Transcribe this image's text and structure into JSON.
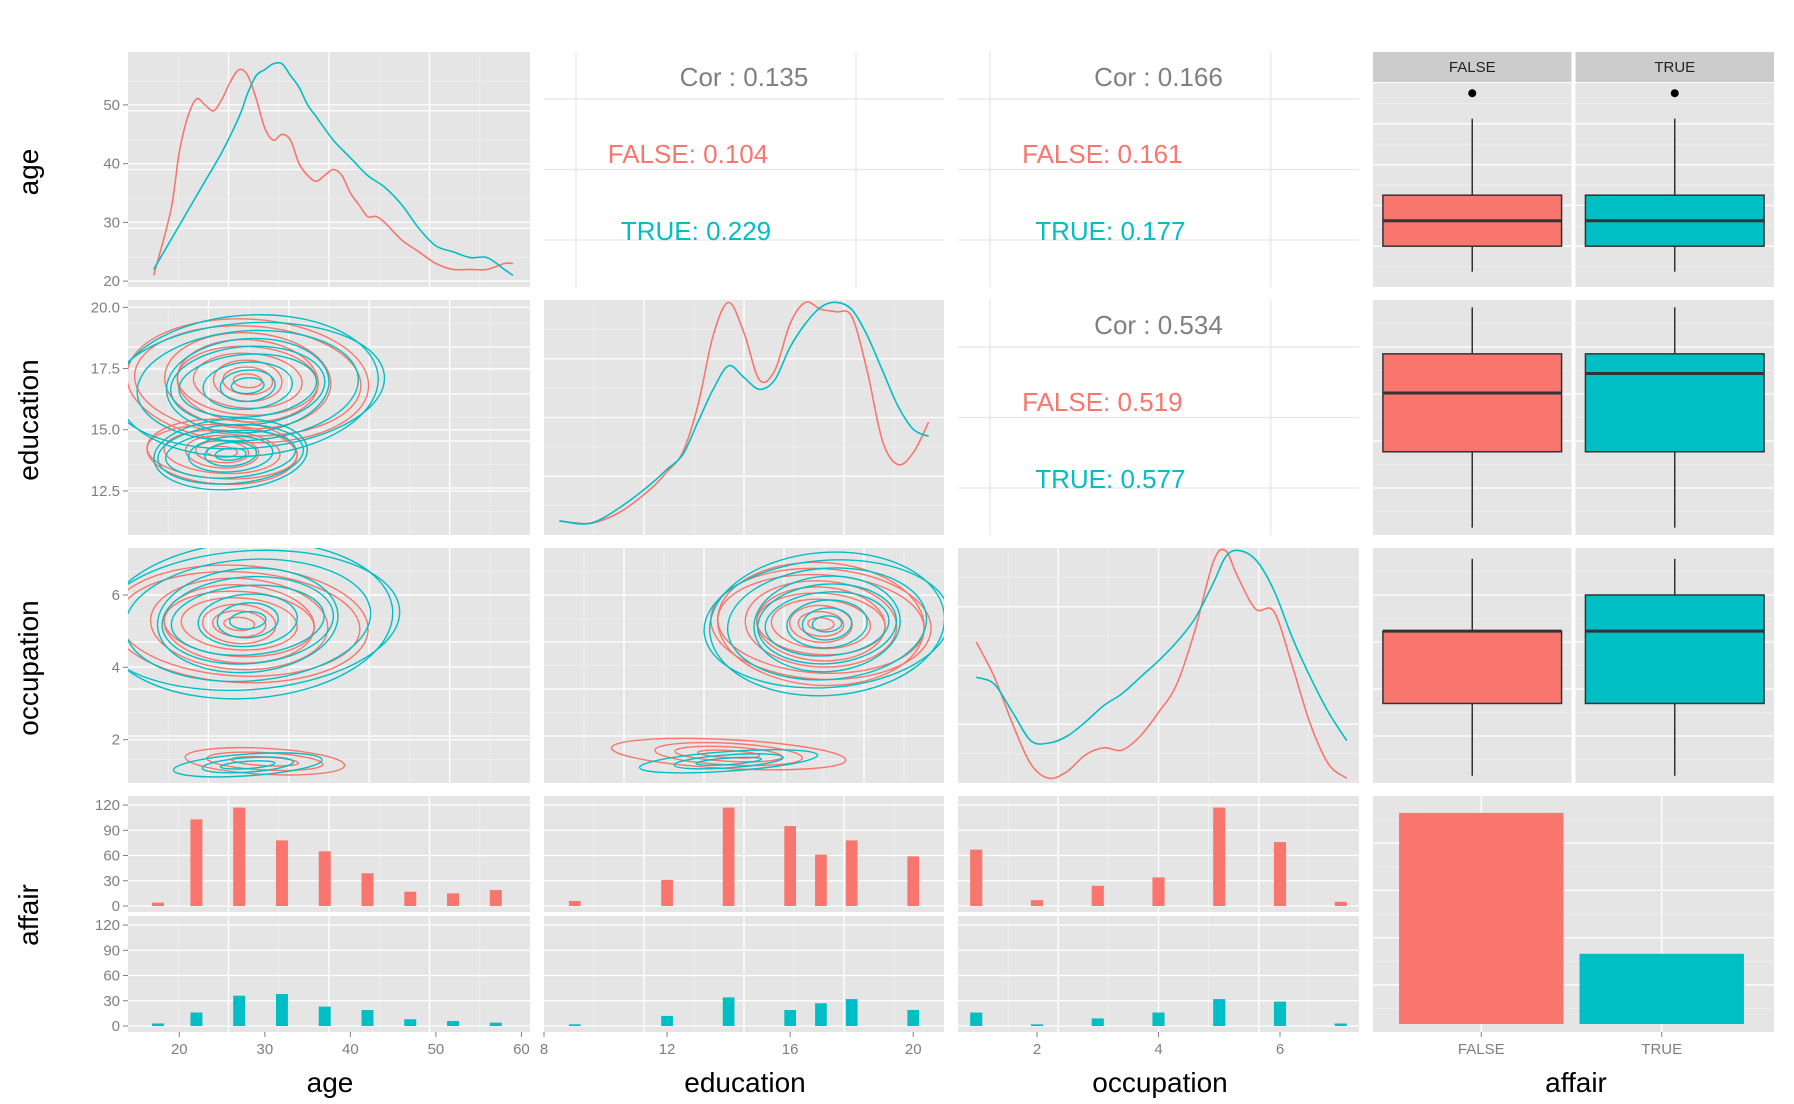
{
  "colors": {
    "FALSE": "#f8766d",
    "TRUE": "#00bfc4",
    "neutral": "#808080",
    "panel": "#e5e5e5"
  },
  "variables": [
    "age",
    "education",
    "occupation",
    "affair"
  ],
  "row_titles": [
    "age",
    "education",
    "occupation",
    "affair"
  ],
  "col_titles": [
    "age",
    "education",
    "occupation",
    "affair"
  ],
  "chart_data": [
    {
      "type": "line",
      "panel": "age-density",
      "row": 0,
      "col": 0,
      "xlim": [
        14,
        61
      ],
      "ylim": [
        19,
        59
      ],
      "y_ticks": [
        20,
        30,
        40,
        50
      ],
      "series": [
        {
          "name": "FALSE",
          "x": [
            17,
            19,
            20,
            21,
            22,
            23,
            24,
            25,
            26,
            27,
            28,
            29,
            30,
            31,
            32,
            33,
            34,
            35,
            36,
            37,
            38,
            39,
            40,
            41,
            42,
            43,
            44,
            46,
            48,
            50,
            52,
            54,
            56,
            58,
            59
          ],
          "y": [
            21,
            32,
            42,
            48,
            51,
            50,
            49,
            51,
            54,
            56,
            55,
            51,
            46,
            44,
            45,
            44,
            40,
            38,
            37,
            38,
            39,
            38,
            35,
            33,
            31,
            31,
            30,
            27,
            25,
            23,
            22,
            22,
            22,
            23,
            23
          ]
        },
        {
          "name": "TRUE",
          "x": [
            17,
            19,
            21,
            23,
            25,
            27,
            28,
            29,
            30,
            31,
            32,
            33,
            34,
            35,
            36,
            38,
            40,
            42,
            44,
            46,
            48,
            50,
            52,
            54,
            56,
            58,
            59
          ],
          "y": [
            22,
            27,
            32,
            37,
            42,
            48,
            52,
            55,
            56,
            57,
            57,
            55,
            53,
            50,
            48,
            44,
            41,
            38,
            36,
            33,
            29,
            26,
            25,
            24,
            24,
            22,
            21
          ]
        }
      ]
    },
    {
      "type": "table",
      "panel": "cor-age-education",
      "row": 0,
      "col": 1,
      "lines": [
        {
          "text": "Cor : 0.135",
          "group": "all"
        },
        {
          "text": "FALSE: 0.104",
          "group": "FALSE"
        },
        {
          "text": "TRUE: 0.229",
          "group": "TRUE"
        }
      ]
    },
    {
      "type": "table",
      "panel": "cor-age-occupation",
      "row": 0,
      "col": 2,
      "lines": [
        {
          "text": "Cor : 0.166",
          "group": "all"
        },
        {
          "text": "FALSE: 0.161",
          "group": "FALSE"
        },
        {
          "text": "TRUE: 0.177",
          "group": "TRUE"
        }
      ]
    },
    {
      "type": "box",
      "panel": "age-by-affair",
      "row": 0,
      "col": 3,
      "facets": [
        "FALSE",
        "TRUE"
      ],
      "ylim": [
        19,
        59
      ],
      "boxes": [
        {
          "group": "FALSE",
          "min": 22,
          "q1": 27,
          "median": 32,
          "q3": 37,
          "max": 52,
          "outliers": [
            57
          ]
        },
        {
          "group": "TRUE",
          "min": 22,
          "q1": 27,
          "median": 32,
          "q3": 37,
          "max": 52,
          "outliers": [
            57
          ]
        }
      ]
    },
    {
      "type": "line",
      "panel": "education-vs-age-contours",
      "row": 1,
      "col": 0,
      "xlim": [
        14,
        61
      ],
      "ylim": [
        10.7,
        20.3
      ],
      "y_ticks": [
        12.5,
        15.0,
        17.5,
        20.0
      ],
      "centers": [
        {
          "group": "FALSE",
          "cx": 28,
          "cy": 17.0,
          "levels": 9,
          "rx_step": 1.5,
          "ry_step": 0.28
        },
        {
          "group": "FALSE",
          "cx": 25,
          "cy": 14.1,
          "levels": 6,
          "rx_step": 1.6,
          "ry_step": 0.22
        },
        {
          "group": "TRUE",
          "cx": 28,
          "cy": 16.8,
          "levels": 9,
          "rx_step": 1.8,
          "ry_step": 0.32
        },
        {
          "group": "TRUE",
          "cx": 26,
          "cy": 14.0,
          "levels": 6,
          "rx_step": 1.7,
          "ry_step": 0.24
        }
      ]
    },
    {
      "type": "line",
      "panel": "education-density",
      "row": 1,
      "col": 1,
      "xlim": [
        8,
        21
      ],
      "ylim": [
        0,
        1
      ],
      "series": [
        {
          "name": "FALSE",
          "x": [
            8.5,
            9.5,
            10.5,
            11.5,
            12,
            12.5,
            13,
            13.5,
            14,
            14.5,
            15,
            15.5,
            16,
            16.5,
            17,
            17.5,
            18,
            18.5,
            19,
            19.5,
            20,
            20.5
          ],
          "y": [
            0.06,
            0.05,
            0.1,
            0.2,
            0.27,
            0.35,
            0.55,
            0.85,
            0.99,
            0.86,
            0.66,
            0.7,
            0.9,
            0.99,
            0.96,
            0.95,
            0.93,
            0.7,
            0.4,
            0.3,
            0.35,
            0.48
          ]
        },
        {
          "name": "TRUE",
          "x": [
            8.5,
            9.5,
            10.5,
            11.5,
            12,
            12.5,
            13,
            13.5,
            14,
            14.5,
            15,
            15.5,
            16,
            16.5,
            17,
            17.5,
            18,
            18.5,
            19,
            19.5,
            20,
            20.5
          ],
          "y": [
            0.06,
            0.05,
            0.12,
            0.22,
            0.28,
            0.34,
            0.48,
            0.62,
            0.72,
            0.67,
            0.62,
            0.66,
            0.8,
            0.9,
            0.97,
            0.99,
            0.96,
            0.85,
            0.7,
            0.55,
            0.45,
            0.42
          ]
        }
      ]
    },
    {
      "type": "table",
      "panel": "cor-education-occupation",
      "row": 1,
      "col": 2,
      "lines": [
        {
          "text": "Cor : 0.534",
          "group": "all"
        },
        {
          "text": "FALSE: 0.519",
          "group": "FALSE"
        },
        {
          "text": "TRUE: 0.577",
          "group": "TRUE"
        }
      ]
    },
    {
      "type": "box",
      "panel": "education-by-affair",
      "row": 1,
      "col": 3,
      "ylim": [
        10.7,
        20.3
      ],
      "boxes": [
        {
          "group": "FALSE",
          "min": 11,
          "q1": 14.1,
          "median": 16.5,
          "q3": 18.1,
          "max": 20.0,
          "outliers": []
        },
        {
          "group": "TRUE",
          "min": 11,
          "q1": 14.1,
          "median": 17.3,
          "q3": 18.1,
          "max": 20.0,
          "outliers": []
        }
      ]
    },
    {
      "type": "line",
      "panel": "occupation-vs-age-contours",
      "row": 2,
      "col": 0,
      "xlim": [
        14,
        61
      ],
      "ylim": [
        0.8,
        7.3
      ],
      "y_ticks": [
        2,
        4,
        6
      ],
      "centers": [
        {
          "group": "FALSE",
          "cx": 27,
          "cy": 5.2,
          "levels": 9,
          "rx_step": 1.6,
          "ry_step": 0.18
        },
        {
          "group": "FALSE",
          "cx": 30,
          "cy": 1.4,
          "levels": 3,
          "rx_step": 3.5,
          "ry_step": 0.12
        },
        {
          "group": "TRUE",
          "cx": 28,
          "cy": 5.3,
          "levels": 9,
          "rx_step": 2.0,
          "ry_step": 0.24
        },
        {
          "group": "TRUE",
          "cx": 28,
          "cy": 1.3,
          "levels": 3,
          "rx_step": 3.0,
          "ry_step": 0.1
        }
      ]
    },
    {
      "type": "line",
      "panel": "occupation-vs-education-contours",
      "row": 2,
      "col": 1,
      "xlim": [
        8,
        21
      ],
      "ylim": [
        0.8,
        7.3
      ],
      "centers": [
        {
          "group": "FALSE",
          "cx": 17.0,
          "cy": 5.2,
          "levels": 10,
          "rx_step": 0.38,
          "ry_step": 0.17
        },
        {
          "group": "FALSE",
          "cx": 14.0,
          "cy": 1.6,
          "levels": 4,
          "rx_step": 0.9,
          "ry_step": 0.1
        },
        {
          "group": "TRUE",
          "cx": 17.2,
          "cy": 5.2,
          "levels": 9,
          "rx_step": 0.45,
          "ry_step": 0.22
        },
        {
          "group": "TRUE",
          "cx": 14.0,
          "cy": 1.4,
          "levels": 3,
          "rx_step": 1.0,
          "ry_step": 0.09
        }
      ]
    },
    {
      "type": "line",
      "panel": "occupation-density",
      "row": 2,
      "col": 2,
      "xlim": [
        0.7,
        7.3
      ],
      "ylim": [
        0,
        1
      ],
      "series": [
        {
          "name": "FALSE",
          "x": [
            1.0,
            1.3,
            1.6,
            1.9,
            2.2,
            2.5,
            2.8,
            3.1,
            3.4,
            3.7,
            4.0,
            4.3,
            4.6,
            4.9,
            5.1,
            5.3,
            5.6,
            5.9,
            6.2,
            6.5,
            6.8,
            7.1
          ],
          "y": [
            0.6,
            0.45,
            0.25,
            0.08,
            0.02,
            0.05,
            0.12,
            0.15,
            0.14,
            0.2,
            0.3,
            0.42,
            0.65,
            0.94,
            0.99,
            0.88,
            0.74,
            0.73,
            0.5,
            0.25,
            0.08,
            0.02
          ]
        },
        {
          "name": "TRUE",
          "x": [
            1.0,
            1.3,
            1.6,
            1.9,
            2.2,
            2.5,
            2.8,
            3.1,
            3.4,
            3.7,
            4.0,
            4.3,
            4.6,
            4.9,
            5.1,
            5.3,
            5.6,
            5.9,
            6.2,
            6.5,
            6.8,
            7.1
          ],
          "y": [
            0.45,
            0.42,
            0.3,
            0.18,
            0.17,
            0.2,
            0.26,
            0.33,
            0.38,
            0.45,
            0.52,
            0.6,
            0.7,
            0.85,
            0.96,
            0.99,
            0.95,
            0.82,
            0.62,
            0.45,
            0.3,
            0.18
          ]
        }
      ]
    },
    {
      "type": "box",
      "panel": "occupation-by-affair",
      "row": 2,
      "col": 3,
      "ylim": [
        0.8,
        7.3
      ],
      "boxes": [
        {
          "group": "FALSE",
          "min": 1,
          "q1": 3,
          "median": 5,
          "q3": 5,
          "max": 7,
          "outliers": []
        },
        {
          "group": "TRUE",
          "min": 1,
          "q1": 3,
          "median": 5,
          "q3": 6,
          "max": 7,
          "outliers": []
        }
      ]
    },
    {
      "type": "bar",
      "panel": "age-histogram-by-affair",
      "row": 3,
      "col": 0,
      "xlim": [
        14,
        61
      ],
      "x_ticks": [
        20,
        30,
        40,
        50,
        60
      ],
      "ylim": [
        0,
        120
      ],
      "y_ticks": [
        0,
        30,
        60,
        90,
        120
      ],
      "bar_width": 1.4,
      "categories": [
        17.5,
        22,
        27,
        32,
        37,
        42,
        47,
        52,
        57
      ],
      "series": [
        {
          "name": "FALSE",
          "values": [
            4,
            103,
            117,
            78,
            65,
            39,
            17,
            15,
            19
          ]
        },
        {
          "name": "TRUE",
          "values": [
            3,
            16,
            36,
            38,
            23,
            19,
            8,
            6,
            4
          ]
        }
      ]
    },
    {
      "type": "bar",
      "panel": "education-histogram-by-affair",
      "row": 3,
      "col": 1,
      "xlim": [
        8,
        21
      ],
      "x_ticks": [
        8,
        12,
        16,
        20
      ],
      "ylim": [
        0,
        120
      ],
      "bar_width": 0.38,
      "categories": [
        9,
        12,
        14,
        16,
        17,
        18,
        20
      ],
      "series": [
        {
          "name": "FALSE",
          "values": [
            6,
            31,
            117,
            95,
            61,
            78,
            59
          ]
        },
        {
          "name": "TRUE",
          "values": [
            2,
            12,
            34,
            19,
            27,
            32,
            19
          ]
        }
      ]
    },
    {
      "type": "bar",
      "panel": "occupation-histogram-by-affair",
      "row": 3,
      "col": 2,
      "xlim": [
        0.7,
        7.3
      ],
      "x_ticks": [
        2,
        4,
        6
      ],
      "ylim": [
        0,
        120
      ],
      "bar_width": 0.2,
      "categories": [
        1,
        2,
        3,
        4,
        5,
        6,
        7
      ],
      "series": [
        {
          "name": "FALSE",
          "values": [
            67,
            7,
            24,
            34,
            117,
            76,
            5
          ]
        },
        {
          "name": "TRUE",
          "values": [
            16,
            2,
            9,
            16,
            32,
            29,
            3
          ]
        }
      ]
    },
    {
      "type": "bar",
      "panel": "affair-counts",
      "row": 3,
      "col": 3,
      "categories": [
        "FALSE",
        "TRUE"
      ],
      "values": [
        451,
        150
      ],
      "ylim": [
        0,
        470
      ]
    }
  ]
}
